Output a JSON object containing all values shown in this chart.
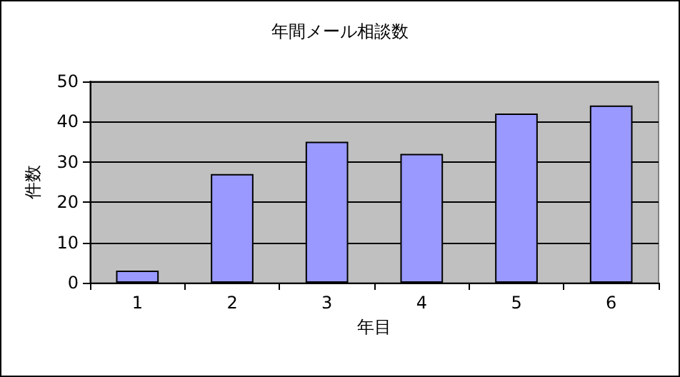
{
  "chart_data": {
    "type": "bar",
    "title": "年間メール相談数",
    "xlabel": "年目",
    "ylabel": "件数",
    "categories": [
      "1",
      "2",
      "3",
      "4",
      "5",
      "6"
    ],
    "values": [
      3,
      27,
      35,
      32,
      42,
      44
    ],
    "color": "#9999ff",
    "ylim": [
      0,
      50
    ],
    "yticks": [
      0,
      10,
      20,
      30,
      40,
      50
    ],
    "grid": "y"
  }
}
